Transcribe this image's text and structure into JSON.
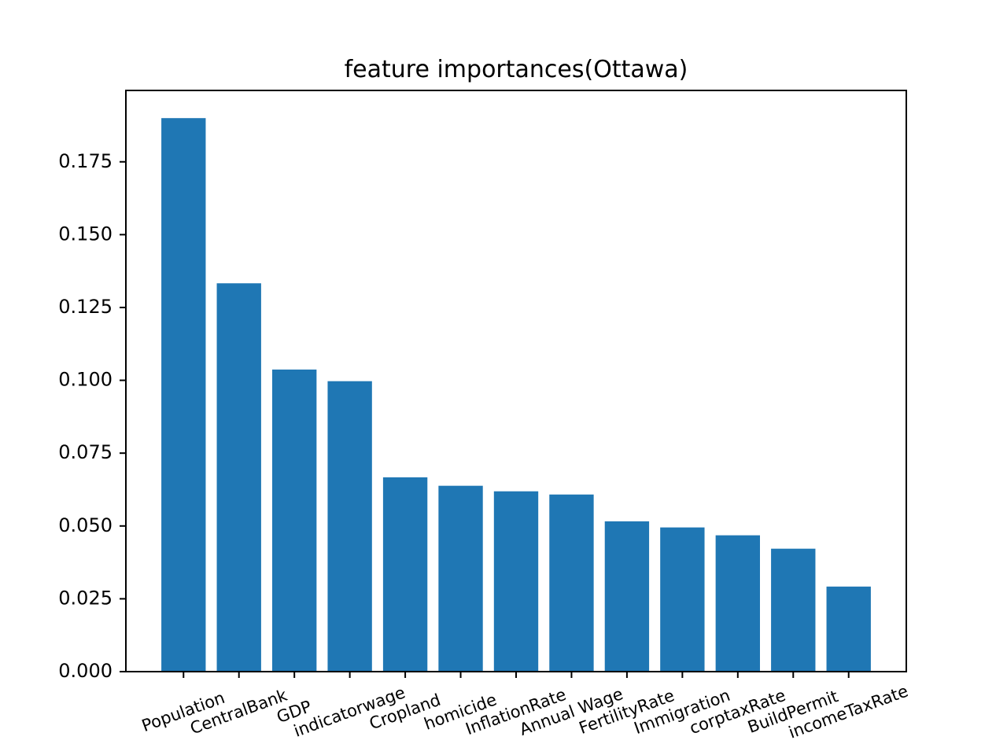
{
  "chart_data": {
    "type": "bar",
    "title": "feature importances(Ottawa)",
    "xlabel": "",
    "ylabel": "",
    "categories": [
      "Population",
      "CentralBank",
      "GDP",
      "indicatorwage",
      "Cropland",
      "homicide",
      "InflationRate",
      "Annual Wage",
      "FertilityRate",
      "Immigration",
      "corptaxRate",
      "BuildPermit",
      "incomeTaxRate"
    ],
    "values": [
      0.19,
      0.1333,
      0.1037,
      0.0997,
      0.0667,
      0.0638,
      0.0619,
      0.0608,
      0.0516,
      0.0495,
      0.0468,
      0.0422,
      0.0292
    ],
    "ylim": [
      0,
      0.1995
    ],
    "yticks": [
      0.0,
      0.025,
      0.05,
      0.075,
      0.1,
      0.125,
      0.15,
      0.175
    ],
    "ytick_labels": [
      "0.000",
      "0.025",
      "0.050",
      "0.075",
      "0.100",
      "0.125",
      "0.150",
      "0.175"
    ],
    "xtick_rotation_deg": 20,
    "bar_color": "#1f77b4",
    "grid": false,
    "legend": "none"
  }
}
